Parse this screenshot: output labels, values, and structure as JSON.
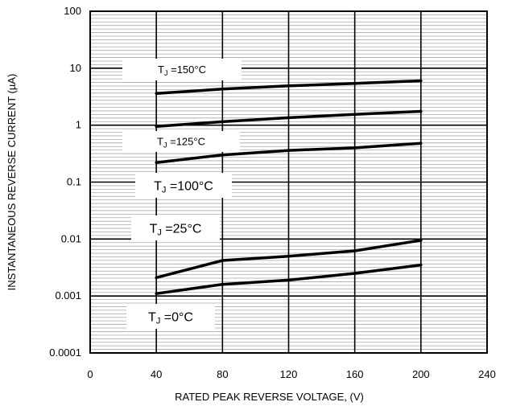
{
  "chart_data": {
    "type": "line",
    "xlabel": "RATED PEAK REVERSE VOLTAGE, (V)",
    "ylabel": "INSTANTANEOUS REVERSE CURRENT (µA)",
    "xlim": [
      0,
      240
    ],
    "ylim": [
      0.0001,
      100
    ],
    "yscale": "log",
    "grid": true,
    "x_ticks": [
      "0",
      "40",
      "80",
      "120",
      "160",
      "200",
      "240"
    ],
    "y_ticks": [
      "100",
      "10",
      "1",
      "0.1",
      "0.01",
      "0.001",
      "0.0001"
    ],
    "series": [
      {
        "name": "TJ =150°C",
        "label": "150°C",
        "label_style": "small",
        "points": [
          [
            40,
            3.6
          ],
          [
            80,
            4.3
          ],
          [
            120,
            4.9
          ],
          [
            160,
            5.4
          ],
          [
            200,
            6.0
          ]
        ]
      },
      {
        "name": "TJ =125°C",
        "label": "125°C",
        "label_style": "small",
        "points": [
          [
            40,
            0.95
          ],
          [
            80,
            1.15
          ],
          [
            120,
            1.35
          ],
          [
            160,
            1.55
          ],
          [
            200,
            1.75
          ]
        ]
      },
      {
        "name": "TJ =100°C",
        "label": "100°C",
        "label_style": "large",
        "points": [
          [
            40,
            0.22
          ],
          [
            80,
            0.3
          ],
          [
            120,
            0.36
          ],
          [
            160,
            0.4
          ],
          [
            200,
            0.48
          ]
        ]
      },
      {
        "name": "TJ =25°C",
        "label": "25°C",
        "label_style": "large",
        "points": [
          [
            40,
            0.0021
          ],
          [
            80,
            0.0042
          ],
          [
            120,
            0.005
          ],
          [
            160,
            0.0062
          ],
          [
            200,
            0.0095
          ]
        ]
      },
      {
        "name": "TJ =0°C",
        "label": "0°C",
        "label_style": "large",
        "points": [
          [
            40,
            0.0011
          ],
          [
            80,
            0.0016
          ],
          [
            120,
            0.0019
          ],
          [
            160,
            0.0025
          ],
          [
            200,
            0.0035
          ]
        ]
      }
    ]
  }
}
